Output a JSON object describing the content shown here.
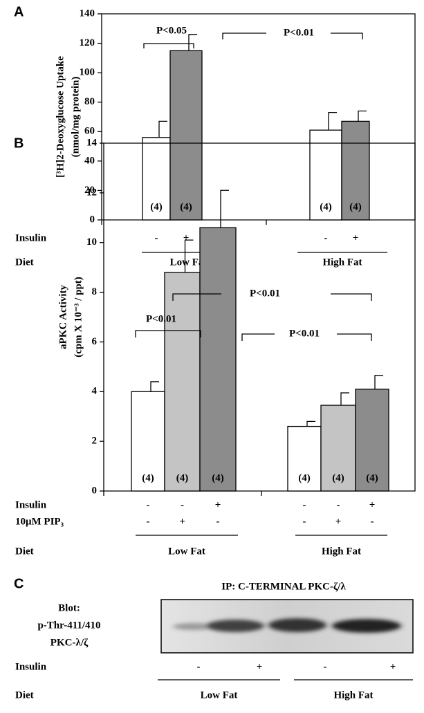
{
  "chart_data": [
    {
      "type": "bar",
      "label": "A",
      "ylabel": [
        "[³H]2-Deoxyglucose Uptake",
        "(nmol/mg protein)"
      ],
      "ylim": [
        0,
        140
      ],
      "yticks": [
        0,
        20,
        40,
        60,
        80,
        100,
        120,
        140
      ],
      "values": [
        56,
        115,
        61,
        67
      ],
      "errors": [
        11,
        11,
        12,
        7
      ],
      "colors": [
        "#ffffff",
        "#8c8c8c",
        "#ffffff",
        "#8c8c8c"
      ],
      "n_labels": [
        "(4)",
        "(4)",
        "(4)",
        "(4)"
      ],
      "rows": [
        {
          "label": "Insulin",
          "values": [
            "-",
            "+",
            "-",
            "+"
          ]
        }
      ],
      "diet": {
        "label": "Diet",
        "groups": [
          "Low Fat",
          "High Fat"
        ]
      },
      "annotations": [
        "P<0.05",
        "P<0.01"
      ]
    },
    {
      "type": "bar",
      "label": "B",
      "ylabel": [
        "aPKC Activity",
        "(cpm X 10⁻³ / ppt)"
      ],
      "ylim": [
        0,
        14
      ],
      "yticks": [
        0,
        2,
        4,
        6,
        8,
        10,
        12,
        14
      ],
      "values": [
        4.0,
        8.8,
        10.6,
        2.6,
        3.45,
        4.1
      ],
      "errors": [
        0.4,
        1.3,
        1.5,
        0.2,
        0.5,
        0.55
      ],
      "colors": [
        "#ffffff",
        "#c4c4c4",
        "#8c8c8c",
        "#ffffff",
        "#c4c4c4",
        "#8c8c8c"
      ],
      "n_labels": [
        "(4)",
        "(4)",
        "(4)",
        "(4)",
        "(4)",
        "(4)"
      ],
      "rows": [
        {
          "label": "Insulin",
          "values": [
            "-",
            "-",
            "+",
            "-",
            "-",
            "+"
          ]
        },
        {
          "label": "10μM PIP₃",
          "values": [
            "-",
            "+",
            "-",
            "-",
            "+",
            "-"
          ]
        }
      ],
      "diet": {
        "label": "Diet",
        "groups": [
          "Low Fat",
          "High Fat"
        ]
      },
      "annotations": [
        "P<0.01",
        "P<0.01",
        "P<0.01"
      ]
    }
  ],
  "panel_c": {
    "label": "C",
    "title": "IP: C-TERMINAL PKC-ζ/λ",
    "blot_label": [
      "Blot:",
      "p-Thr-411/410",
      "PKC-λ/ζ"
    ],
    "rows": [
      {
        "label": "Insulin",
        "values": [
          "-",
          "+",
          "-",
          "+"
        ]
      }
    ],
    "diet": {
      "label": "Diet",
      "groups": [
        "Low Fat",
        "High Fat"
      ]
    }
  }
}
